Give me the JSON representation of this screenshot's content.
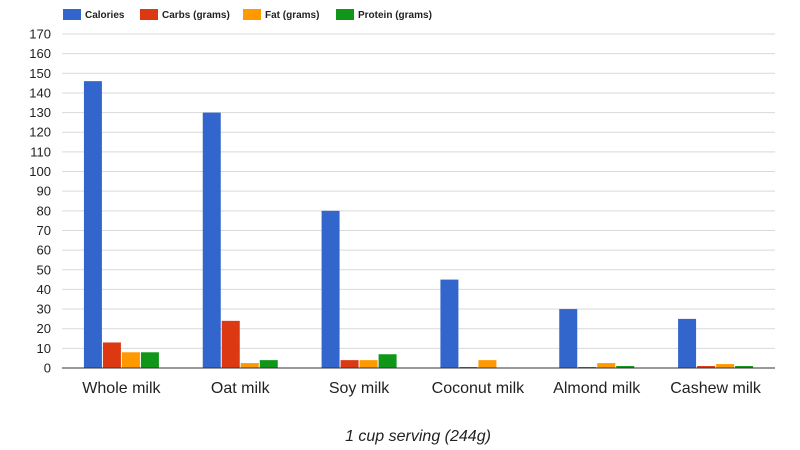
{
  "chart_data": {
    "type": "bar",
    "title": "",
    "xlabel": "1 cup serving (244g)",
    "ylabel": "",
    "ylim": [
      0,
      170
    ],
    "yticks": [
      0,
      10,
      20,
      30,
      40,
      50,
      60,
      70,
      80,
      90,
      100,
      110,
      120,
      130,
      140,
      150,
      160,
      170
    ],
    "grid": true,
    "legend_position": "top-left",
    "categories": [
      "Whole milk",
      "Oat milk",
      "Soy milk",
      "Coconut milk",
      "Almond milk",
      "Cashew milk"
    ],
    "series": [
      {
        "name": "Calories",
        "color": "#3366cc",
        "values": [
          146,
          130,
          80,
          45,
          30,
          25
        ]
      },
      {
        "name": "Carbs (grams)",
        "color": "#dc3912",
        "values": [
          13,
          24,
          4,
          0.5,
          0.5,
          1
        ]
      },
      {
        "name": "Fat (grams)",
        "color": "#ff9900",
        "values": [
          8,
          2.5,
          4,
          4,
          2.5,
          2
        ]
      },
      {
        "name": "Protein (grams)",
        "color": "#109618",
        "values": [
          8,
          4,
          7,
          0,
          1,
          1
        ]
      }
    ]
  }
}
